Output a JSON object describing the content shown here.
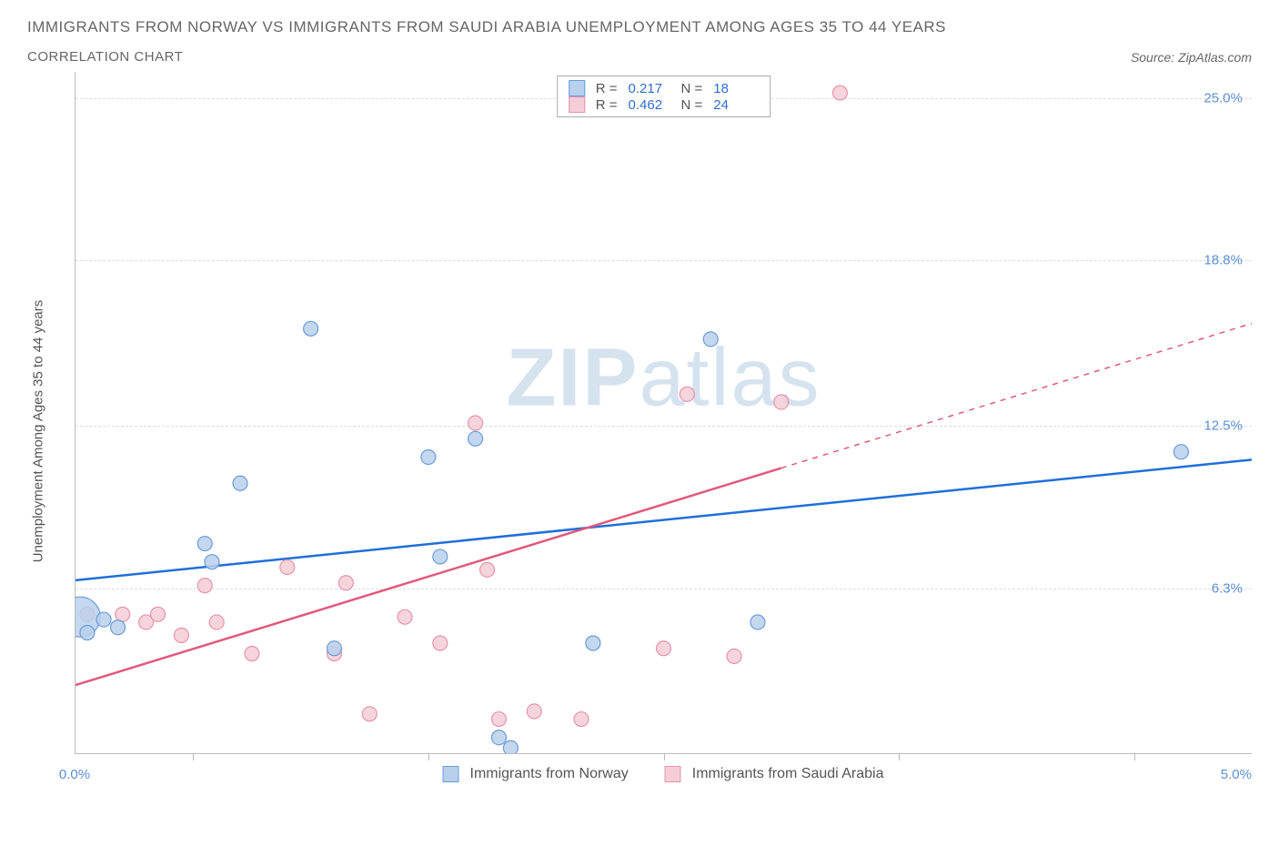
{
  "title": "IMMIGRANTS FROM NORWAY VS IMMIGRANTS FROM SAUDI ARABIA UNEMPLOYMENT AMONG AGES 35 TO 44 YEARS",
  "subtitle": "CORRELATION CHART",
  "source": "Source: ZipAtlas.com",
  "watermark": "ZIPatlas",
  "y_axis_title": "Unemployment Among Ages 35 to 44 years",
  "chart": {
    "type": "scatter",
    "background_color": "#ffffff",
    "grid_color": "#dddddd",
    "axis_color": "#bbbbbb",
    "xlim": [
      0.0,
      5.0
    ],
    "ylim": [
      0.0,
      26.0
    ],
    "x_ticks": [
      0.5,
      1.5,
      2.5,
      3.5,
      4.5
    ],
    "x_tick_labels": {
      "min": "0.0%",
      "max": "5.0%"
    },
    "y_ticks": [
      6.3,
      12.5,
      18.8,
      25.0
    ],
    "y_tick_labels": [
      "6.3%",
      "12.5%",
      "18.8%",
      "25.0%"
    ],
    "y_tick_color": "#5b8fd6",
    "x_tick_color": "#5b8fd6",
    "series": [
      {
        "name": "Immigrants from Norway",
        "color_fill": "#b8d0ec",
        "color_stroke": "#6a9bd8",
        "r_value": "0.217",
        "n_value": "18",
        "marker_radius": 8,
        "points": [
          [
            0.02,
            5.2,
            22
          ],
          [
            0.05,
            4.6,
            8
          ],
          [
            0.12,
            5.1,
            8
          ],
          [
            0.18,
            4.8,
            8
          ],
          [
            0.55,
            8.0,
            8
          ],
          [
            0.58,
            7.3,
            8
          ],
          [
            0.7,
            10.3,
            8
          ],
          [
            1.0,
            16.2,
            8
          ],
          [
            1.1,
            4.0,
            8
          ],
          [
            1.5,
            11.3,
            8
          ],
          [
            1.55,
            7.5,
            8
          ],
          [
            1.7,
            12.0,
            8
          ],
          [
            1.8,
            0.6,
            8
          ],
          [
            1.85,
            0.2,
            8
          ],
          [
            2.2,
            4.2,
            8
          ],
          [
            2.7,
            15.8,
            8
          ],
          [
            2.9,
            5.0,
            8
          ],
          [
            4.7,
            11.5,
            8
          ]
        ],
        "trend": {
          "x1": 0.0,
          "y1": 6.6,
          "x2": 5.0,
          "y2": 11.2,
          "solid_until_x": 5.0,
          "color": "#1f6fd8",
          "width": 2.5
        }
      },
      {
        "name": "Immigrants from Saudi Arabia",
        "color_fill": "#f5cdd6",
        "color_stroke": "#e594a8",
        "r_value": "0.462",
        "n_value": "24",
        "marker_radius": 8,
        "points": [
          [
            0.05,
            5.3,
            8
          ],
          [
            0.2,
            5.3,
            8
          ],
          [
            0.3,
            5.0,
            8
          ],
          [
            0.35,
            5.3,
            8
          ],
          [
            0.45,
            4.5,
            8
          ],
          [
            0.55,
            6.4,
            8
          ],
          [
            0.6,
            5.0,
            8
          ],
          [
            0.75,
            3.8,
            8
          ],
          [
            0.9,
            7.1,
            8
          ],
          [
            1.1,
            3.8,
            8
          ],
          [
            1.15,
            6.5,
            8
          ],
          [
            1.25,
            1.5,
            8
          ],
          [
            1.4,
            5.2,
            8
          ],
          [
            1.55,
            4.2,
            8
          ],
          [
            1.7,
            12.6,
            8
          ],
          [
            1.75,
            7.0,
            8
          ],
          [
            1.8,
            1.3,
            8
          ],
          [
            1.95,
            1.6,
            8
          ],
          [
            2.15,
            1.3,
            8
          ],
          [
            2.5,
            4.0,
            8
          ],
          [
            2.6,
            13.7,
            8
          ],
          [
            2.8,
            3.7,
            8
          ],
          [
            3.0,
            13.4,
            8
          ],
          [
            3.25,
            25.2,
            8
          ]
        ],
        "trend": {
          "x1": 0.0,
          "y1": 2.6,
          "x2": 5.0,
          "y2": 16.4,
          "solid_until_x": 3.0,
          "color": "#e05a7c",
          "width": 2.5
        }
      }
    ]
  }
}
